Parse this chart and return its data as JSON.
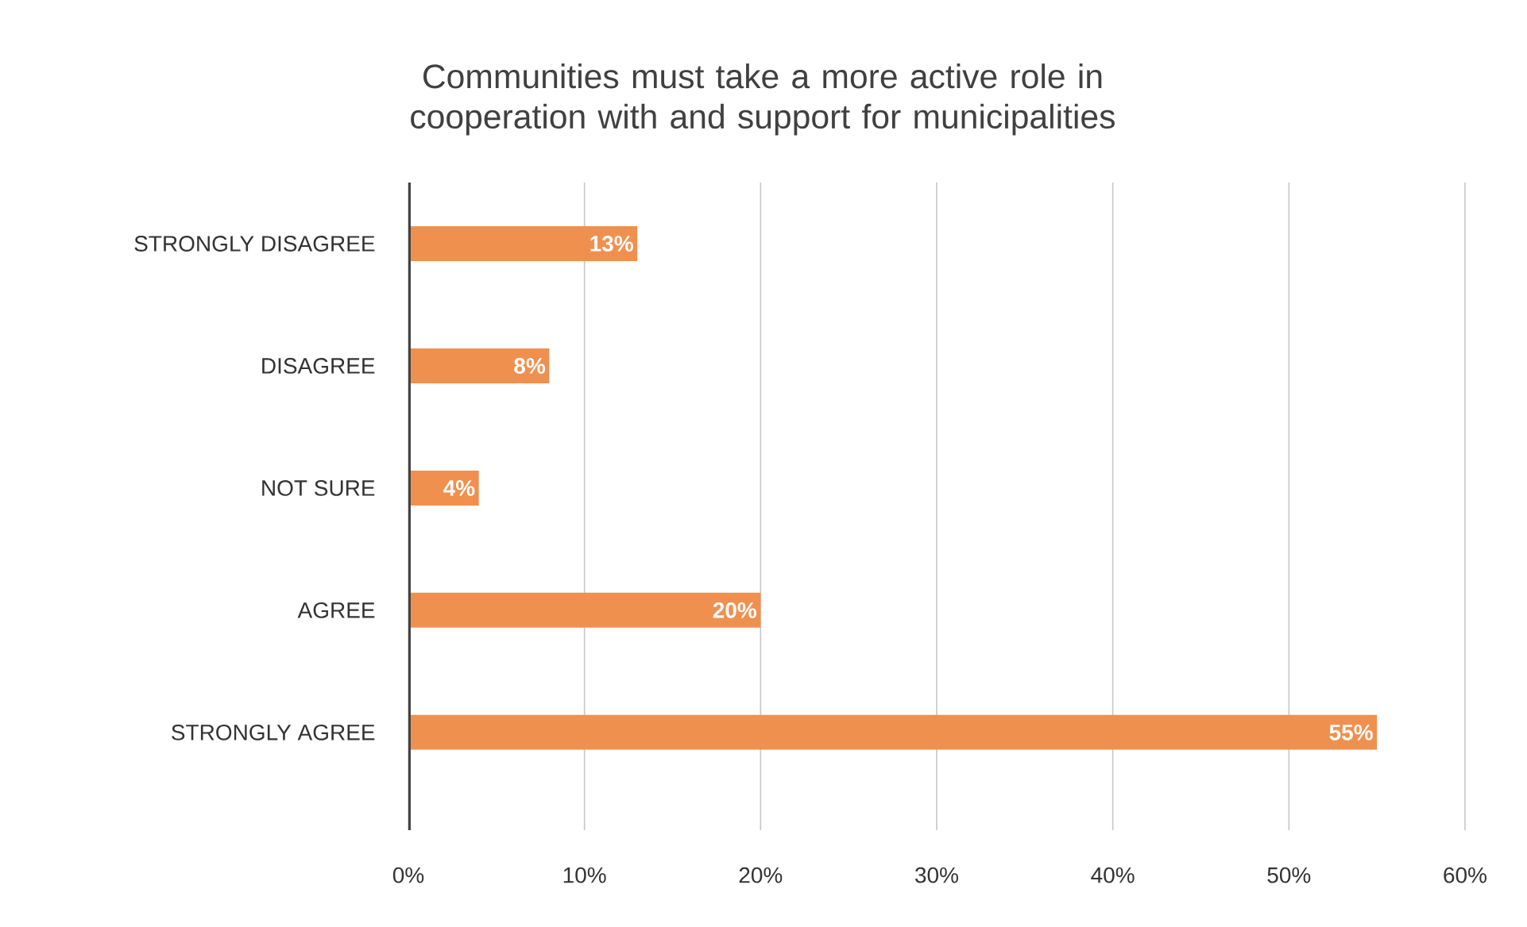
{
  "chart_data": {
    "type": "bar",
    "orientation": "horizontal",
    "title": "Communities must take a more active role in cooperation with and support for municipalities",
    "categories": [
      "STRONGLY DISAGREE",
      "DISAGREE",
      "NOT SURE",
      "AGREE",
      "STRONGLY AGREE"
    ],
    "values": [
      13,
      8,
      4,
      20,
      55
    ],
    "value_labels": [
      "13%",
      "8%",
      "4%",
      "20%",
      "55%"
    ],
    "color": "#f0904f",
    "xlim": [
      0,
      60
    ],
    "xticks": [
      {
        "value": 0,
        "label": "0%"
      },
      {
        "value": 10,
        "label": "10%"
      },
      {
        "value": 20,
        "label": "20%"
      },
      {
        "value": 30,
        "label": "30%"
      },
      {
        "value": 40,
        "label": "40%"
      },
      {
        "value": 50,
        "label": "50%"
      },
      {
        "value": 60,
        "label": "60%"
      }
    ],
    "grid": "x"
  }
}
